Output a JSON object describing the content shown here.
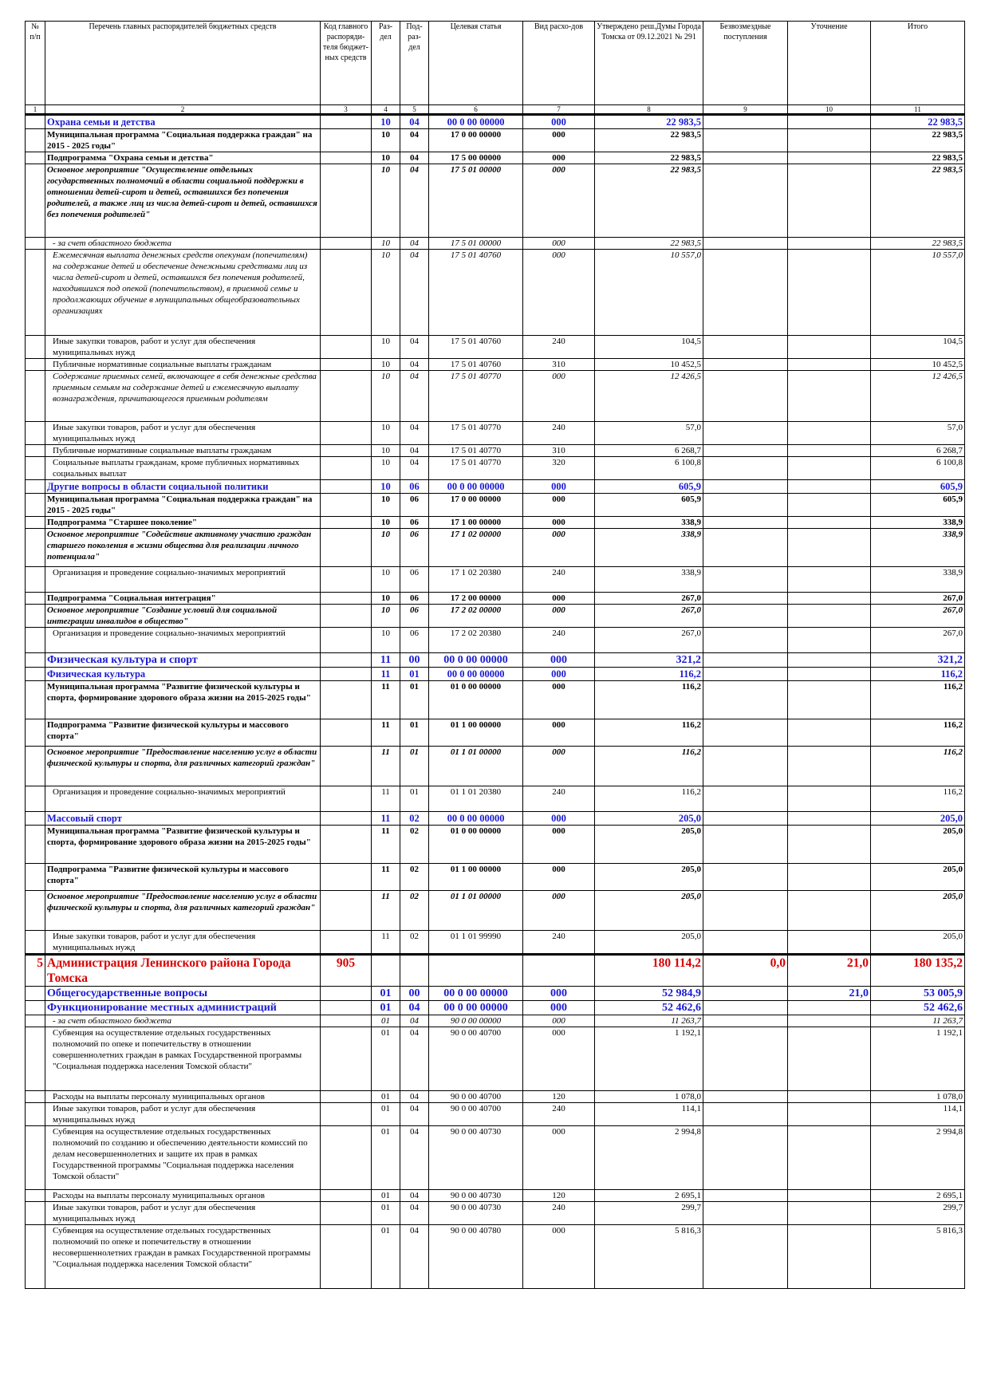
{
  "headers": {
    "c1": "№ п/п",
    "c2": "Перечень главных распорядителей бюджетных средств",
    "c3": "Код главного распоряди-теля бюджет-ных средств",
    "c4": "Раз-дел",
    "c5": "Под-раз-дел",
    "c6": "Целевая статья",
    "c7": "Вид расхо-дов",
    "c8": "Утверждено реш.Думы Города Томска от 09.12.2021 № 291",
    "c9": "Безвозмездные поступления",
    "c10": "Уточнение",
    "c11": "Итого"
  },
  "col_numbers": [
    "1",
    "2",
    "3",
    "4",
    "5",
    "6",
    "7",
    "8",
    "9",
    "10",
    "11"
  ],
  "rows": [
    {
      "style": "sec",
      "num": "",
      "name": "Охрана семьи и детства",
      "code": "",
      "razdel": "10",
      "podrazdel": "04",
      "celevaya": "00 0 00 00000",
      "vid": "000",
      "utv": "22 983,5",
      "bezv": "",
      "utoch": "",
      "itogo": "22 983,5"
    },
    {
      "style": "bold",
      "num": "",
      "name": "Муниципальная программа \"Социальная поддержка граждан\" на 2015 - 2025 годы\"",
      "code": "",
      "razdel": "10",
      "podrazdel": "04",
      "celevaya": "17 0 00 00000",
      "vid": "000",
      "utv": "22 983,5",
      "bezv": "",
      "utoch": "",
      "itogo": "22 983,5"
    },
    {
      "style": "bold",
      "num": "",
      "name": "Подпрограмма \"Охрана семьи и детства\"",
      "code": "",
      "razdel": "10",
      "podrazdel": "04",
      "celevaya": "17 5 00 00000",
      "vid": "000",
      "utv": "22 983,5",
      "bezv": "",
      "utoch": "",
      "itogo": "22 983,5"
    },
    {
      "style": "bi",
      "num": "",
      "name": "Основное мероприятие \"Осуществление отдельных государственных полномочий в области социальной поддержки в отношении детей-сирот и детей, оставшихся без попечения родителей, а также лиц из числа детей-сирот и детей, оставшихся без попечения родителей\"",
      "code": "",
      "razdel": "10",
      "podrazdel": "04",
      "celevaya": "17 5 01 00000",
      "vid": "000",
      "utv": "22 983,5",
      "bezv": "",
      "utoch": "",
      "itogo": "22 983,5",
      "h": 92
    },
    {
      "style": "it ind",
      "num": "",
      "name": "- за счет областного бюджета",
      "code": "",
      "razdel": "10",
      "podrazdel": "04",
      "celevaya": "17 5 01 00000",
      "vid": "000",
      "utv": "22 983,5",
      "bezv": "",
      "utoch": "",
      "itogo": "22 983,5"
    },
    {
      "style": "it ind",
      "num": "",
      "name": "Ежемесячная выплата денежных средств опекунам (попечителям) на содержание детей и обеспечение денежными средствами лиц из числа детей-сирот и детей, оставшихся без попечения родителей, находившихся под опекой (попечительством), в приемной семье и продолжающих обучение в муниципальных общеобразовательных организациях",
      "code": "",
      "razdel": "10",
      "podrazdel": "04",
      "celevaya": "17 5 01 40760",
      "vid": "000",
      "utv": "10 557,0",
      "bezv": "",
      "utoch": "",
      "itogo": "10 557,0",
      "h": 108
    },
    {
      "style": "ind",
      "num": "",
      "name": "Иные закупки товаров, работ и услуг для обеспечения муниципальных нужд",
      "code": "",
      "razdel": "10",
      "podrazdel": "04",
      "celevaya": "17 5 01 40760",
      "vid": "240",
      "utv": "104,5",
      "bezv": "",
      "utoch": "",
      "itogo": "104,5"
    },
    {
      "style": "ind",
      "num": "",
      "name": "Публичные нормативные социальные выплаты гражданам",
      "code": "",
      "razdel": "10",
      "podrazdel": "04",
      "celevaya": "17 5 01 40760",
      "vid": "310",
      "utv": "10 452,5",
      "bezv": "",
      "utoch": "",
      "itogo": "10 452,5"
    },
    {
      "style": "it ind",
      "num": "",
      "name": "Содержание приемных семей, включающее в себя денежные средства приемным семьям на содержание детей и ежемесячную выплату вознаграждения, причитающегося приемным родителям",
      "code": "",
      "razdel": "10",
      "podrazdel": "04",
      "celevaya": "17 5 01 40770",
      "vid": "000",
      "utv": "12 426,5",
      "bezv": "",
      "utoch": "",
      "itogo": "12 426,5",
      "h": 64
    },
    {
      "style": "ind",
      "num": "",
      "name": "Иные закупки товаров, работ и услуг для обеспечения муниципальных нужд",
      "code": "",
      "razdel": "10",
      "podrazdel": "04",
      "celevaya": "17 5 01 40770",
      "vid": "240",
      "utv": "57,0",
      "bezv": "",
      "utoch": "",
      "itogo": "57,0"
    },
    {
      "style": "ind",
      "num": "",
      "name": "Публичные нормативные социальные выплаты гражданам",
      "code": "",
      "razdel": "10",
      "podrazdel": "04",
      "celevaya": "17 5 01 40770",
      "vid": "310",
      "utv": "6 268,7",
      "bezv": "",
      "utoch": "",
      "itogo": "6 268,7"
    },
    {
      "style": "ind",
      "num": "",
      "name": "Социальные выплаты гражданам, кроме публичных нормативных социальных выплат",
      "code": "",
      "razdel": "10",
      "podrazdel": "04",
      "celevaya": "17 5 01 40770",
      "vid": "320",
      "utv": "6 100,8",
      "bezv": "",
      "utoch": "",
      "itogo": "6 100,8"
    },
    {
      "style": "sec",
      "num": "",
      "name": "Другие вопросы в области социальной политики",
      "code": "",
      "razdel": "10",
      "podrazdel": "06",
      "celevaya": "00 0 00 00000",
      "vid": "000",
      "utv": "605,9",
      "bezv": "",
      "utoch": "",
      "itogo": "605,9"
    },
    {
      "style": "bold",
      "num": "",
      "name": "Муниципальная программа \"Социальная поддержка граждан\" на 2015 - 2025 годы\"",
      "code": "",
      "razdel": "10",
      "podrazdel": "06",
      "celevaya": "17 0 00 00000",
      "vid": "000",
      "utv": "605,9",
      "bezv": "",
      "utoch": "",
      "itogo": "605,9"
    },
    {
      "style": "bold",
      "num": "",
      "name": "Подпрограмма \"Старшее поколение\"",
      "code": "",
      "razdel": "10",
      "podrazdel": "06",
      "celevaya": "17 1 00 00000",
      "vid": "000",
      "utv": "338,9",
      "bezv": "",
      "utoch": "",
      "itogo": "338,9"
    },
    {
      "style": "bi",
      "num": "",
      "name": "Основное мероприятие \"Содействие активному участию граждан старшего поколения в жизни общества для реализации личного потенциала\"",
      "code": "",
      "razdel": "10",
      "podrazdel": "06",
      "celevaya": "17 1 02 00000",
      "vid": "000",
      "utv": "338,9",
      "bezv": "",
      "utoch": "",
      "itogo": "338,9",
      "h": 48
    },
    {
      "style": "ind",
      "num": "",
      "name": "Организация и проведение социально-значимых мероприятий",
      "code": "",
      "razdel": "10",
      "podrazdel": "06",
      "celevaya": "17 1 02 20380",
      "vid": "240",
      "utv": "338,9",
      "bezv": "",
      "utoch": "",
      "itogo": "338,9",
      "h": 32
    },
    {
      "style": "bold",
      "num": "",
      "name": "Подпрограмма \"Социальная интеграция\"",
      "code": "",
      "razdel": "10",
      "podrazdel": "06",
      "celevaya": "17 2 00 00000",
      "vid": "000",
      "utv": "267,0",
      "bezv": "",
      "utoch": "",
      "itogo": "267,0"
    },
    {
      "style": "bi",
      "num": "",
      "name": "Основное мероприятие \"Создание условий для социальной интеграции инвалидов в общество\"",
      "code": "",
      "razdel": "10",
      "podrazdel": "06",
      "celevaya": "17 2 02 00000",
      "vid": "000",
      "utv": "267,0",
      "bezv": "",
      "utoch": "",
      "itogo": "267,0"
    },
    {
      "style": "ind",
      "num": "",
      "name": "Организация и проведение социально-значимых мероприятий",
      "code": "",
      "razdel": "10",
      "podrazdel": "06",
      "celevaya": "17 2 02 20380",
      "vid": "240",
      "utv": "267,0",
      "bezv": "",
      "utoch": "",
      "itogo": "267,0",
      "h": 32
    },
    {
      "style": "secbig",
      "num": "",
      "name": "Физическая культура и спорт",
      "code": "",
      "razdel": "11",
      "podrazdel": "00",
      "celevaya": "00 0 00 00000",
      "vid": "000",
      "utv": "321,2",
      "bezv": "",
      "utoch": "",
      "itogo": "321,2"
    },
    {
      "style": "sec",
      "num": "",
      "name": "Физическая культура",
      "code": "",
      "razdel": "11",
      "podrazdel": "01",
      "celevaya": "00 0 00 00000",
      "vid": "000",
      "utv": "116,2",
      "bezv": "",
      "utoch": "",
      "itogo": "116,2"
    },
    {
      "style": "bold",
      "num": "",
      "name": "Муниципальная программа \"Развитие физической культуры и спорта, формирование здорового образа жизни на 2015-2025 годы\"",
      "code": "",
      "razdel": "11",
      "podrazdel": "01",
      "celevaya": "01 0 00 00000",
      "vid": "000",
      "utv": "116,2",
      "bezv": "",
      "utoch": "",
      "itogo": "116,2",
      "h": 48
    },
    {
      "style": "bold",
      "num": "",
      "name": "Подпрограмма \"Развитие физической культуры и массового спорта\"",
      "code": "",
      "razdel": "11",
      "podrazdel": "01",
      "celevaya": "01 1 00 00000",
      "vid": "000",
      "utv": "116,2",
      "bezv": "",
      "utoch": "",
      "itogo": "116,2",
      "h": 34
    },
    {
      "style": "bi",
      "num": "",
      "name": "Основное мероприятие \"Предоставление населению услуг в области физической культуры и спорта, для различных категорий граждан\"",
      "code": "",
      "razdel": "11",
      "podrazdel": "01",
      "celevaya": "01 1 01 00000",
      "vid": "000",
      "utv": "116,2",
      "bezv": "",
      "utoch": "",
      "itogo": "116,2",
      "h": 50
    },
    {
      "style": "ind",
      "num": "",
      "name": "Организация и проведение социально-значимых мероприятий",
      "code": "",
      "razdel": "11",
      "podrazdel": "01",
      "celevaya": "01 1 01 20380",
      "vid": "240",
      "utv": "116,2",
      "bezv": "",
      "utoch": "",
      "itogo": "116,2",
      "h": 32
    },
    {
      "style": "sec",
      "num": "",
      "name": "Массовый спорт",
      "code": "",
      "razdel": "11",
      "podrazdel": "02",
      "celevaya": "00 0 00 00000",
      "vid": "000",
      "utv": "205,0",
      "bezv": "",
      "utoch": "",
      "itogo": "205,0"
    },
    {
      "style": "bold",
      "num": "",
      "name": "Муниципальная программа \"Развитие физической культуры и спорта, формирование здорового образа жизни на 2015-2025 годы\"",
      "code": "",
      "razdel": "11",
      "podrazdel": "02",
      "celevaya": "01 0 00 00000",
      "vid": "000",
      "utv": "205,0",
      "bezv": "",
      "utoch": "",
      "itogo": "205,0",
      "h": 48
    },
    {
      "style": "bold",
      "num": "",
      "name": "Подпрограмма \"Развитие физической культуры и массового спорта\"",
      "code": "",
      "razdel": "11",
      "podrazdel": "02",
      "celevaya": "01 1 00 00000",
      "vid": "000",
      "utv": "205,0",
      "bezv": "",
      "utoch": "",
      "itogo": "205,0",
      "h": 34
    },
    {
      "style": "bi",
      "num": "",
      "name": "Основное мероприятие \"Предоставление населению услуг в области физической культуры и спорта, для различных категорий граждан\"",
      "code": "",
      "razdel": "11",
      "podrazdel": "02",
      "celevaya": "01 1 01 00000",
      "vid": "000",
      "utv": "205,0",
      "bezv": "",
      "utoch": "",
      "itogo": "205,0",
      "h": 50
    },
    {
      "style": "ind",
      "num": "",
      "name": "Иные закупки товаров, работ и услуг для обеспечения муниципальных нужд",
      "code": "",
      "razdel": "11",
      "podrazdel": "02",
      "celevaya": "01 1 01 99990",
      "vid": "240",
      "utv": "205,0",
      "bezv": "",
      "utoch": "",
      "itogo": "205,0"
    },
    {
      "style": "adm",
      "num": "5",
      "name": "Администрация Ленинского района Города Томска",
      "code": "905",
      "razdel": "",
      "podrazdel": "",
      "celevaya": "",
      "vid": "",
      "utv": "180 114,2",
      "bezv": "0,0",
      "utoch": "21,0",
      "itogo": "180 135,2",
      "h": 40
    },
    {
      "style": "secbig",
      "num": "",
      "name": "Общегосударственные вопросы",
      "code": "",
      "razdel": "01",
      "podrazdel": "00",
      "celevaya": "00 0 00 00000",
      "vid": "000",
      "utv": "52 984,9",
      "bezv": "",
      "utoch": "21,0",
      "itogo": "53 005,9"
    },
    {
      "style": "secbig",
      "num": "",
      "name": "Функционирование местных администраций",
      "code": "",
      "razdel": "01",
      "podrazdel": "04",
      "celevaya": "00 0 00 00000",
      "vid": "000",
      "utv": "52 462,6",
      "bezv": "",
      "utoch": "",
      "itogo": "52 462,6"
    },
    {
      "style": "it ind",
      "num": "",
      "name": "- за счет областного бюджета",
      "code": "",
      "razdel": "01",
      "podrazdel": "04",
      "celevaya": "90 0 00 00000",
      "vid": "000",
      "utv": "11 263,7",
      "bezv": "",
      "utoch": "",
      "itogo": "11 263,7"
    },
    {
      "style": "ind",
      "num": "",
      "name": "Субвенция на осуществление отдельных государственных полномочий по опеке и попечительству в отношении совершеннолетних граждан в рамках Государственной программы \"Социальная поддержка населения Томской области\"",
      "code": "",
      "razdel": "01",
      "podrazdel": "04",
      "celevaya": "90 0 00 40700",
      "vid": "000",
      "utv": "1 192,1",
      "bezv": "",
      "utoch": "",
      "itogo": "1 192,1",
      "h": 80
    },
    {
      "style": "ind",
      "num": "",
      "name": "Расходы на выплаты персоналу муниципальных органов",
      "code": "",
      "razdel": "01",
      "podrazdel": "04",
      "celevaya": "90 0 00 40700",
      "vid": "120",
      "utv": "1 078,0",
      "bezv": "",
      "utoch": "",
      "itogo": "1 078,0"
    },
    {
      "style": "ind",
      "num": "",
      "name": "Иные закупки товаров, работ и услуг для обеспечения муниципальных нужд",
      "code": "",
      "razdel": "01",
      "podrazdel": "04",
      "celevaya": "90 0 00 40700",
      "vid": "240",
      "utv": "114,1",
      "bezv": "",
      "utoch": "",
      "itogo": "114,1"
    },
    {
      "style": "ind",
      "num": "",
      "name": "Субвенция на осуществление отдельных государственных полномочий по созданию и обеспечению деятельности комиссий по делам несовершеннолетних и защите их прав в рамках Государственной программы \"Социальная поддержка населения Томской области\"",
      "code": "",
      "razdel": "01",
      "podrazdel": "04",
      "celevaya": "90 0 00 40730",
      "vid": "000",
      "utv": "2 994,8",
      "bezv": "",
      "utoch": "",
      "itogo": "2 994,8",
      "h": 80
    },
    {
      "style": "ind",
      "num": "",
      "name": "Расходы на выплаты персоналу муниципальных органов",
      "code": "",
      "razdel": "01",
      "podrazdel": "04",
      "celevaya": "90 0 00 40730",
      "vid": "120",
      "utv": "2 695,1",
      "bezv": "",
      "utoch": "",
      "itogo": "2 695,1"
    },
    {
      "style": "ind",
      "num": "",
      "name": "Иные закупки товаров, работ и услуг для обеспечения муниципальных нужд",
      "code": "",
      "razdel": "01",
      "podrazdel": "04",
      "celevaya": "90 0 00 40730",
      "vid": "240",
      "utv": "299,7",
      "bezv": "",
      "utoch": "",
      "itogo": "299,7"
    },
    {
      "style": "ind",
      "num": "",
      "name": "Субвенция на осуществление отдельных государственных полномочий по опеке и попечительству в отношении несовершеннолетних граждан в рамках Государственной программы \"Социальная поддержка населения Томской области\"",
      "code": "",
      "razdel": "01",
      "podrazdel": "04",
      "celevaya": "90 0 00 40780",
      "vid": "000",
      "utv": "5 816,3",
      "bezv": "",
      "utoch": "",
      "itogo": "5 816,3",
      "h": 80
    }
  ]
}
